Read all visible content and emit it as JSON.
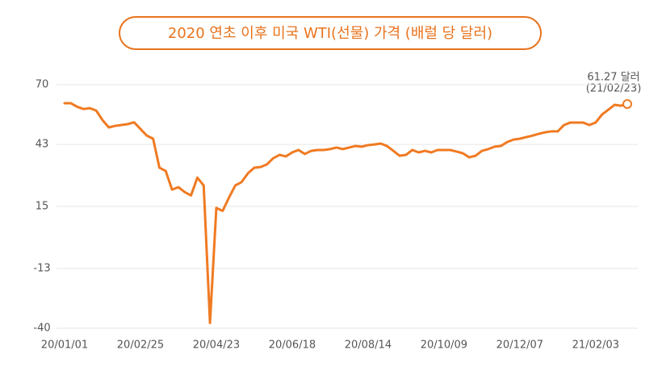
{
  "chart_data": {
    "type": "line",
    "title": "2020 연초 이후 미국 WTI(선물) 가격 (배럴 당 달러)",
    "annotation": [
      "61.27 달러",
      "(21/02/23)"
    ],
    "categories": [
      "20/01/01",
      null,
      null,
      null,
      null,
      null,
      null,
      null,
      null,
      null,
      null,
      null,
      "20/02/25",
      null,
      null,
      null,
      null,
      null,
      null,
      null,
      null,
      null,
      null,
      null,
      "20/04/23",
      null,
      null,
      null,
      null,
      null,
      null,
      null,
      null,
      null,
      null,
      null,
      "20/06/18",
      null,
      null,
      null,
      null,
      null,
      null,
      null,
      null,
      null,
      null,
      null,
      "20/08/14",
      null,
      null,
      null,
      null,
      null,
      null,
      null,
      null,
      null,
      null,
      null,
      "20/10/09",
      null,
      null,
      null,
      null,
      null,
      null,
      null,
      null,
      null,
      null,
      null,
      "20/12/07",
      null,
      null,
      null,
      null,
      null,
      null,
      null,
      null,
      null,
      null,
      null,
      "21/02/03",
      null,
      null,
      null,
      null,
      null
    ],
    "values": [
      61.6,
      61.6,
      60,
      59,
      59.4,
      58.3,
      54,
      50.7,
      51.4,
      51.8,
      52.2,
      53,
      50,
      47,
      45.6,
      32.5,
      31,
      22.6,
      23.7,
      21.5,
      20,
      28,
      24.5,
      -37.63,
      14.3,
      13,
      19,
      24.5,
      26,
      30,
      32.5,
      32.8,
      34,
      36.8,
      38.3,
      37.6,
      39.4,
      40.5,
      38.7,
      40.1,
      40.5,
      40.5,
      40.9,
      41.6,
      40.9,
      41.6,
      42.3,
      42,
      42.7,
      43,
      43.4,
      42.3,
      40.1,
      37.9,
      38.3,
      40.5,
      39.4,
      40.1,
      39.4,
      40.5,
      40.5,
      40.5,
      39.8,
      39,
      37.2,
      37.9,
      40.1,
      40.9,
      42,
      42.3,
      44.1,
      45.2,
      45.6,
      46.3,
      47,
      47.8,
      48.5,
      48.9,
      48.9,
      51.8,
      52.9,
      52.9,
      52.9,
      51.8,
      52.9,
      56.5,
      58.7,
      60.9,
      60.5,
      61.27
    ],
    "color": "#f07a22",
    "ylim": [
      -40,
      70
    ],
    "yticks": [
      -40,
      -13,
      15,
      43,
      70
    ],
    "grid": true
  }
}
